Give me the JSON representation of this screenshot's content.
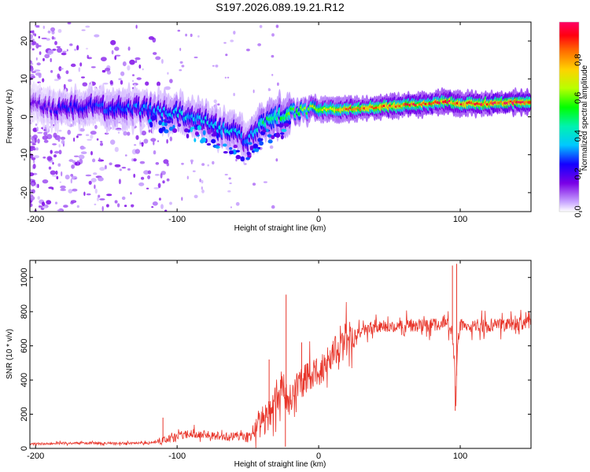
{
  "title": "S197.2026.089.19.21.R12",
  "chart_data": [
    {
      "type": "heatmap",
      "name": "spectrogram",
      "xlabel": "Height of straight line (km)",
      "ylabel": "Frequency (Hz)",
      "xlim": [
        -204,
        150
      ],
      "ylim": [
        -25,
        25
      ],
      "xticks": [
        -200,
        -100,
        0,
        100
      ],
      "yticks": [
        20,
        10,
        0,
        -10,
        -20
      ],
      "colorbar": {
        "label": "Normalized spectral amplitude",
        "range": [
          0.0,
          1.0
        ],
        "ticks": [
          0.0,
          0.2,
          0.4,
          0.6,
          0.8
        ]
      },
      "ridge": {
        "x": [
          -200,
          -180,
          -160,
          -140,
          -120,
          -100,
          -90,
          -80,
          -70,
          -60,
          -52,
          -45,
          -40,
          -30,
          -20,
          -10,
          0,
          10,
          20,
          40,
          60,
          80,
          90,
          100,
          120,
          150
        ],
        "y": [
          3,
          2,
          3,
          2,
          2,
          1,
          0,
          -1,
          -3,
          -4,
          -6,
          -4,
          -2,
          0,
          1,
          1.5,
          2,
          2,
          2,
          2.5,
          3,
          3.5,
          4,
          3.5,
          3.5,
          4
        ],
        "amplitude": [
          0.15,
          0.25,
          0.25,
          0.3,
          0.3,
          0.35,
          0.35,
          0.35,
          0.35,
          0.35,
          0.3,
          0.35,
          0.45,
          0.5,
          0.55,
          0.6,
          0.65,
          0.75,
          0.8,
          0.85,
          0.85,
          0.85,
          0.9,
          0.85,
          0.9,
          0.95
        ]
      }
    },
    {
      "type": "line",
      "name": "snr",
      "xlabel": "Height of straight line (km)",
      "ylabel": "SNR (10 * v/v)",
      "xlim": [
        -204,
        150
      ],
      "ylim": [
        0,
        1100
      ],
      "xticks": [
        -200,
        -100,
        0,
        100
      ],
      "yticks": [
        0,
        200,
        400,
        600,
        800,
        1000
      ],
      "color": "#e8352a",
      "series": [
        {
          "name": "SNR",
          "x": [
            -204,
            -180,
            -160,
            -140,
            -120,
            -110,
            -100,
            -90,
            -80,
            -70,
            -60,
            -50,
            -45,
            -40,
            -35,
            -30,
            -25,
            -22,
            -20,
            -15,
            -10,
            -5,
            0,
            5,
            10,
            15,
            20,
            25,
            30,
            40,
            50,
            60,
            70,
            80,
            90,
            94,
            96,
            97,
            98,
            100,
            110,
            120,
            130,
            140,
            150
          ],
          "y": [
            25,
            30,
            30,
            30,
            30,
            45,
            65,
            90,
            80,
            70,
            70,
            70,
            90,
            160,
            200,
            300,
            380,
            250,
            300,
            380,
            400,
            420,
            450,
            510,
            550,
            600,
            640,
            670,
            690,
            710,
            715,
            720,
            720,
            720,
            740,
            680,
            500,
            230,
            620,
            710,
            720,
            720,
            720,
            725,
            730
          ]
        }
      ],
      "spikes": [
        {
          "x": -23,
          "y": 900
        },
        {
          "x": -23.5,
          "y": 10
        },
        {
          "x": 97.5,
          "y": 1080
        },
        {
          "x": 94.5,
          "y": 1070
        },
        {
          "x": 96.5,
          "y": 220
        },
        {
          "x": -35,
          "y": 520
        },
        {
          "x": -12,
          "y": 620
        },
        {
          "x": -110,
          "y": 180
        }
      ]
    }
  ]
}
